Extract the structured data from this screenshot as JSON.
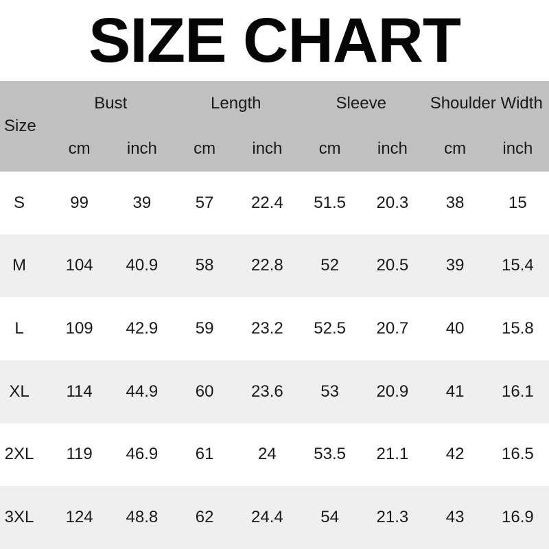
{
  "title": "SIZE CHART",
  "colors": {
    "header_bg": "#c0c0c0",
    "stripe_bg": "#efefef",
    "row_bg": "#ffffff",
    "text": "#1a1a1a",
    "title": "#050505"
  },
  "chart_data": {
    "type": "table",
    "title": "SIZE CHART",
    "corner_label": "Size",
    "column_groups": [
      "Bust",
      "Length",
      "Sleeve",
      "Shoulder Width"
    ],
    "units": [
      "cm",
      "inch"
    ],
    "columns": [
      "Size",
      "Bust cm",
      "Bust inch",
      "Length cm",
      "Length inch",
      "Sleeve cm",
      "Sleeve inch",
      "Shoulder Width cm",
      "Shoulder Width inch"
    ],
    "rows": [
      {
        "size": "S",
        "values": [
          99,
          39,
          57,
          22.4,
          51.5,
          20.3,
          38,
          15
        ]
      },
      {
        "size": "M",
        "values": [
          104,
          40.9,
          58,
          22.8,
          52,
          20.5,
          39,
          15.4
        ]
      },
      {
        "size": "L",
        "values": [
          109,
          42.9,
          59,
          23.2,
          52.5,
          20.7,
          40,
          15.8
        ]
      },
      {
        "size": "XL",
        "values": [
          114,
          44.9,
          60,
          23.6,
          53,
          20.9,
          41,
          16.1
        ]
      },
      {
        "size": "2XL",
        "values": [
          119,
          46.9,
          61,
          24,
          53.5,
          21.1,
          42,
          16.5
        ]
      },
      {
        "size": "3XL",
        "values": [
          124,
          48.8,
          62,
          24.4,
          54,
          21.3,
          43,
          16.9
        ]
      }
    ]
  }
}
